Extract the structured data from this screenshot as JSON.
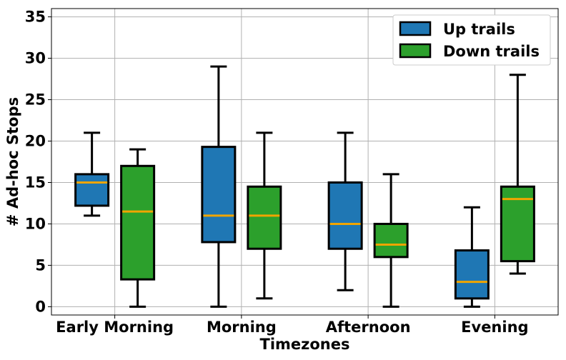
{
  "chart_data": {
    "type": "box",
    "xlabel": "Timezones",
    "ylabel": "# Ad-hoc Stops",
    "ylim": [
      -1,
      36
    ],
    "yticks": [
      0,
      5,
      10,
      15,
      20,
      25,
      30,
      35
    ],
    "grid": true,
    "legend_position": "top-right",
    "categories": [
      "Early Morning",
      "Morning",
      "Afternoon",
      "Evening"
    ],
    "series": [
      {
        "name": "Up trails",
        "color": "#1f77b4",
        "boxes": [
          {
            "whislo": 11,
            "q1": 12.2,
            "med": 15,
            "q3": 16,
            "whishi": 21
          },
          {
            "whislo": 0,
            "q1": 7.8,
            "med": 11,
            "q3": 19.3,
            "whishi": 29
          },
          {
            "whislo": 2,
            "q1": 7,
            "med": 10,
            "q3": 15,
            "whishi": 21
          },
          {
            "whislo": 0,
            "q1": 1,
            "med": 3,
            "q3": 6.8,
            "whishi": 12
          }
        ]
      },
      {
        "name": "Down trails",
        "color": "#2ca02c",
        "boxes": [
          {
            "whislo": 0,
            "q1": 3.3,
            "med": 11.5,
            "q3": 17,
            "whishi": 19
          },
          {
            "whislo": 1,
            "q1": 7,
            "med": 11,
            "q3": 14.5,
            "whishi": 21
          },
          {
            "whislo": 0,
            "q1": 6,
            "med": 7.5,
            "q3": 10,
            "whishi": 16
          },
          {
            "whislo": 4,
            "q1": 5.5,
            "med": 13,
            "q3": 14.5,
            "whishi": 28
          }
        ]
      }
    ],
    "median_color": "#f0a500"
  }
}
